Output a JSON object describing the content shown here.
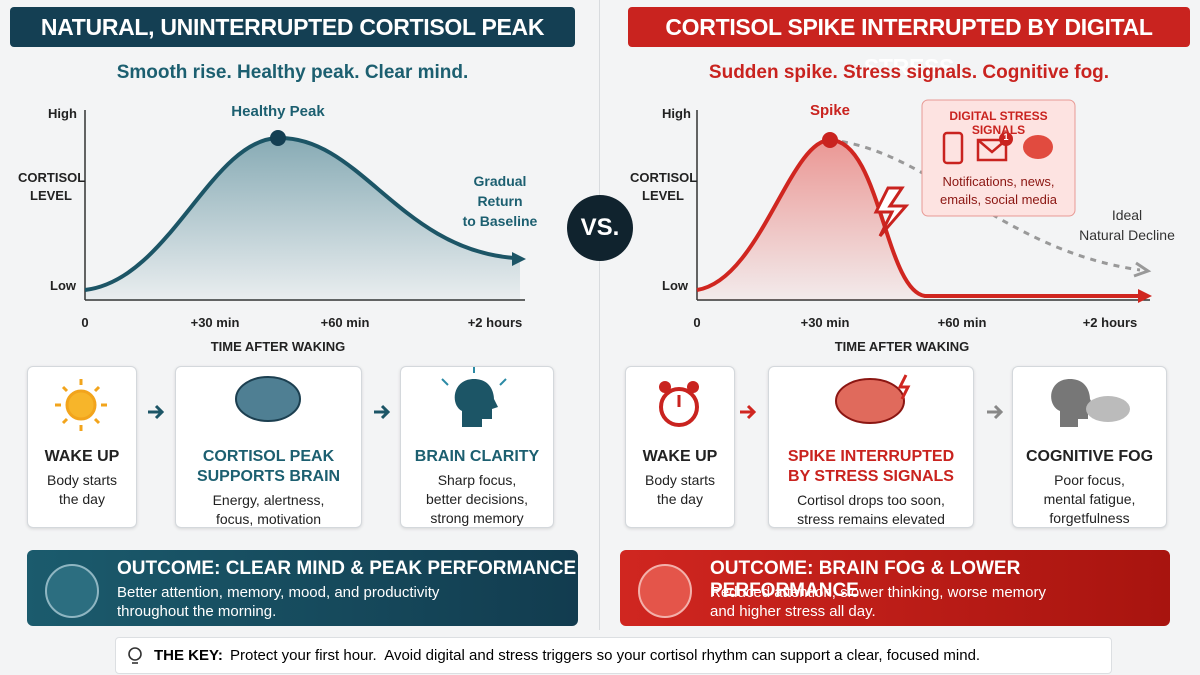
{
  "left": {
    "title": "NATURAL, UNINTERRUPTED CORTISOL PEAK",
    "subtitle": "Smooth rise. Healthy peak. Clear mind.",
    "chart": {
      "y_high": "High",
      "y_label": [
        "CORTISOL",
        "LEVEL"
      ],
      "y_low": "Low",
      "x_labels": [
        "0",
        "+30 min",
        "+60 min",
        "+2 hours"
      ],
      "x_title": "TIME AFTER WAKING",
      "peak_label": "Healthy Peak",
      "end_label": [
        "Gradual",
        "Return",
        "to Baseline"
      ]
    },
    "steps": [
      {
        "title": [
          "WAKE UP"
        ],
        "text": [
          "Body starts",
          "the day"
        ]
      },
      {
        "title": [
          "CORTISOL PEAK",
          "SUPPORTS BRAIN"
        ],
        "text": [
          "Energy, alertness,",
          "focus, motivation"
        ]
      },
      {
        "title": [
          "BRAIN CLARITY"
        ],
        "text": [
          "Sharp focus,",
          "better decisions,",
          "strong memory"
        ]
      }
    ],
    "outcome": {
      "title": "OUTCOME: CLEAR MIND & PEAK PERFORMANCE",
      "text": [
        "Better attention, memory, mood, and productivity",
        "throughout the morning."
      ]
    }
  },
  "vs": "VS.",
  "right": {
    "title": "CORTISOL SPIKE INTERRUPTED BY DIGITAL STRESS",
    "subtitle": "Sudden spike. Stress signals. Cognitive fog.",
    "chart": {
      "y_high": "High",
      "y_label": [
        "CORTISOL",
        "LEVEL"
      ],
      "y_low": "Low",
      "x_labels": [
        "0",
        "+30 min",
        "+60 min",
        "+2 hours"
      ],
      "x_title": "TIME AFTER WAKING",
      "peak_label": "Spike",
      "ideal_label": [
        "Ideal",
        "Natural Decline"
      ],
      "signals": {
        "title": "DIGITAL STRESS SIGNALS",
        "badge": "1",
        "text": [
          "Notifications, news,",
          "emails, social media"
        ]
      }
    },
    "steps": [
      {
        "title": [
          "WAKE UP"
        ],
        "text": [
          "Body starts",
          "the day"
        ]
      },
      {
        "title": [
          "SPIKE INTERRUPTED",
          "BY STRESS SIGNALS"
        ],
        "text": [
          "Cortisol drops too soon,",
          "stress remains elevated"
        ]
      },
      {
        "title": [
          "COGNITIVE FOG"
        ],
        "text": [
          "Poor focus,",
          "mental fatigue,",
          "forgetfulness"
        ]
      }
    ],
    "outcome": {
      "title": "OUTCOME: BRAIN FOG & LOWER PERFORMANCE",
      "text": [
        "Reduced attention, slower thinking, worse memory",
        "and higher stress all day."
      ]
    }
  },
  "key": {
    "label": "THE KEY:",
    "text": "Protect your first hour.  Avoid digital and stress triggers so your cortisol rhythm can support a clear, focused mind."
  }
}
